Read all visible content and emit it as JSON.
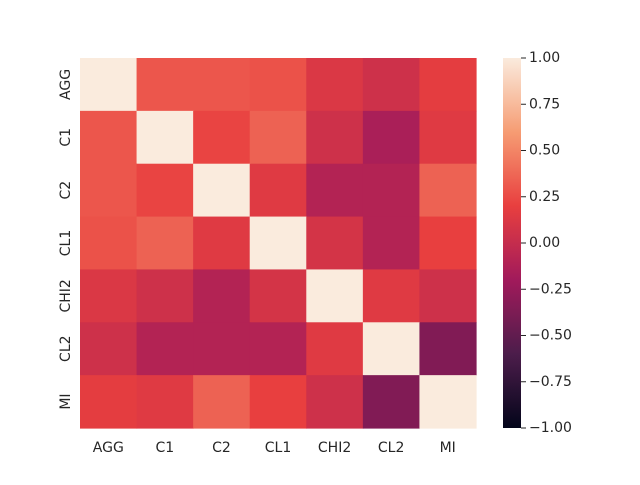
{
  "chart_data": {
    "type": "heatmap",
    "title": "",
    "xlabel": "",
    "ylabel": "",
    "row_labels": [
      "AGG",
      "C1",
      "C2",
      "CL1",
      "CHI2",
      "CL2",
      "MI"
    ],
    "col_labels": [
      "AGG",
      "C1",
      "C2",
      "CL1",
      "CHI2",
      "CL2",
      "MI"
    ],
    "values": [
      [
        1.0,
        0.3,
        0.3,
        0.28,
        0.12,
        0.05,
        0.18
      ],
      [
        0.3,
        1.0,
        0.22,
        0.35,
        0.05,
        -0.15,
        0.15
      ],
      [
        0.3,
        0.22,
        1.0,
        0.15,
        -0.1,
        -0.1,
        0.35
      ],
      [
        0.28,
        0.35,
        0.15,
        1.0,
        0.08,
        -0.1,
        0.2
      ],
      [
        0.12,
        0.05,
        -0.1,
        0.08,
        1.0,
        0.15,
        0.05
      ],
      [
        0.05,
        -0.1,
        -0.1,
        -0.1,
        0.15,
        1.0,
        -0.35
      ],
      [
        0.18,
        0.15,
        0.35,
        0.2,
        0.05,
        -0.35,
        1.0
      ]
    ],
    "vmin": -1.0,
    "vmax": 1.0,
    "colorbar": {
      "ticks": [
        1.0,
        0.75,
        0.5,
        0.25,
        0.0,
        -0.25,
        -0.5,
        -0.75,
        -1.0
      ],
      "tick_labels": [
        "1.00",
        "0.75",
        "0.50",
        "0.25",
        "0.00",
        "−0.25",
        "−0.50",
        "−0.75",
        "−1.00"
      ]
    },
    "colormap": "rocket",
    "colormap_stops": [
      "#03051a",
      "#4c1d4b",
      "#a11a5b",
      "#e83f3f",
      "#f69c73",
      "#faebdd"
    ]
  }
}
